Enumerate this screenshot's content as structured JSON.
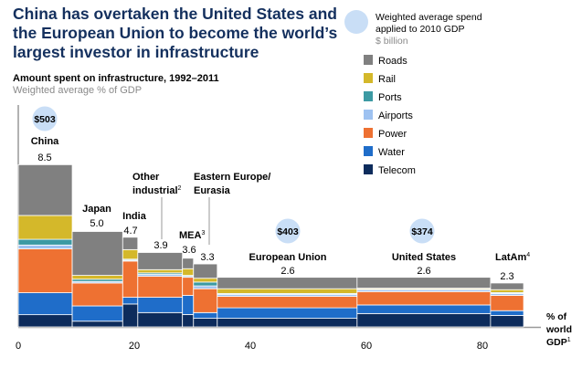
{
  "header": {
    "title": "China has overtaken the United States and the European Union to become the world’s largest investor in infrastructure"
  },
  "legend": {
    "bubble_label_1": "Weighted average spend",
    "bubble_label_2": "applied to 2010 GDP",
    "bubble_unit": "$ billion",
    "bubble_color": "#c9def6"
  },
  "chart_data": {
    "type": "mekko",
    "title": "Amount spent on infrastructure, 1992–2011",
    "subtitle": "Weighted average % of GDP",
    "xlabel": "% of world GDP",
    "xlabel_footnote": "1",
    "xlim": [
      0,
      95
    ],
    "xticks": [
      "0",
      "20",
      "40",
      "60",
      "80"
    ],
    "ylim": [
      0,
      11.5
    ],
    "series": [
      {
        "name": "Telecom",
        "color": "#0d2c5c"
      },
      {
        "name": "Water",
        "color": "#1f6dc9"
      },
      {
        "name": "Power",
        "color": "#ee7132"
      },
      {
        "name": "Airports",
        "color": "#9ec2f1"
      },
      {
        "name": "Ports",
        "color": "#3c9aa3"
      },
      {
        "name": "Rail",
        "color": "#d4b82a"
      },
      {
        "name": "Roads",
        "color": "#808080"
      }
    ],
    "legend_order": [
      "Roads",
      "Rail",
      "Ports",
      "Airports",
      "Power",
      "Water",
      "Telecom"
    ],
    "regions": [
      {
        "name": "China",
        "footnote": "",
        "gdp_share": 9.3,
        "total": "8.5",
        "spend": "$503",
        "values": [
          0.64,
          1.15,
          2.3,
          0.2,
          0.3,
          1.25,
          2.66
        ]
      },
      {
        "name": "Japan",
        "footnote": "",
        "gdp_share": 8.7,
        "total": "5.0",
        "spend": "",
        "values": [
          0.3,
          0.8,
          1.2,
          0.08,
          0.12,
          0.2,
          2.3
        ]
      },
      {
        "name": "India",
        "footnote": "",
        "gdp_share": 2.6,
        "total": "4.7",
        "spend": "",
        "values": [
          1.2,
          0.35,
          1.9,
          0.05,
          0.05,
          0.5,
          0.65
        ]
      },
      {
        "name": "Other industrial",
        "footnote": "2",
        "gdp_share": 7.7,
        "total": "3.9",
        "spend": "",
        "values": [
          0.75,
          0.8,
          1.1,
          0.1,
          0.08,
          0.17,
          0.9
        ]
      },
      {
        "name": "MEA",
        "footnote": "3",
        "gdp_share": 1.9,
        "total": "3.6",
        "spend": "",
        "values": [
          0.65,
          1.0,
          0.95,
          0.05,
          0.05,
          0.35,
          0.55
        ]
      },
      {
        "name": "Eastern Europe/ Eurasia",
        "footnote": "",
        "gdp_share": 4.1,
        "total": "3.3",
        "spend": "",
        "values": [
          0.45,
          0.3,
          1.25,
          0.15,
          0.2,
          0.2,
          0.75
        ]
      },
      {
        "name": "European Union",
        "footnote": "",
        "gdp_share": 24.1,
        "total": "2.6",
        "spend": "$403",
        "values": [
          0.45,
          0.55,
          0.6,
          0.1,
          0.05,
          0.25,
          0.6
        ]
      },
      {
        "name": "United States",
        "footnote": "",
        "gdp_share": 23.0,
        "total": "2.6",
        "spend": "$374",
        "values": [
          0.7,
          0.45,
          0.7,
          0.1,
          0.03,
          0.05,
          0.57
        ]
      },
      {
        "name": "LatAm",
        "footnote": "4",
        "gdp_share": 5.7,
        "total": "2.3",
        "spend": "",
        "values": [
          0.6,
          0.25,
          0.8,
          0.1,
          0.05,
          0.15,
          0.35
        ]
      }
    ]
  }
}
